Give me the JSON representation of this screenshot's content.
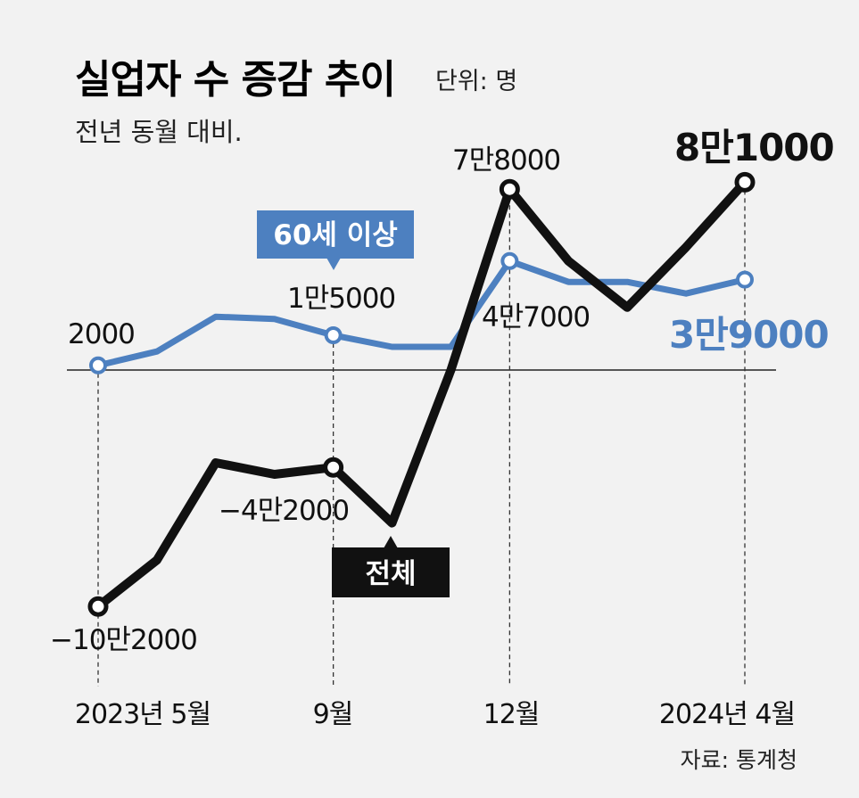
{
  "title": "실업자 수 증감 추이",
  "unit": "단위: 명",
  "subtitle": "전년 동월 대비.",
  "source": "자료: 통계청",
  "colors": {
    "total": "#111111",
    "senior": "#4d80c0",
    "background": "#f2f2f2",
    "tag_total": "#111111",
    "tag_senior": "#4d80c0"
  },
  "chart_data": {
    "type": "line",
    "title": "실업자 수 증감 추이",
    "ylabel": "단위: 명",
    "ylim": [
      -110000,
      90000
    ],
    "categories": [
      "2023-05",
      "2023-06",
      "2023-07",
      "2023-08",
      "2023-09",
      "2023-10",
      "2023-11",
      "2023-12",
      "2024-01",
      "2024-02",
      "2024-03",
      "2024-04"
    ],
    "x_tick_labels": [
      "2023년 5월",
      "9월",
      "12월",
      "2024년 4월"
    ],
    "x_tick_indices": [
      0,
      4,
      7,
      11
    ],
    "series": [
      {
        "name": "전체",
        "values": [
          -102000,
          -82000,
          -40000,
          -45000,
          -42000,
          -66000,
          0,
          78000,
          47000,
          27000,
          53000,
          81000
        ],
        "markers": [
          0,
          4,
          7,
          11
        ]
      },
      {
        "name": "60세 이상",
        "values": [
          2000,
          8000,
          23000,
          22000,
          15000,
          10000,
          10000,
          47000,
          38000,
          38000,
          33000,
          39000
        ],
        "markers": [
          0,
          4,
          7,
          11
        ]
      }
    ],
    "annotations": [
      {
        "series": 1,
        "index": 0,
        "text": "2000"
      },
      {
        "series": 1,
        "index": 4,
        "text": "1만5000"
      },
      {
        "series": 1,
        "index": 7,
        "text": "4만7000"
      },
      {
        "series": 1,
        "index": 11,
        "text": "3만9000"
      },
      {
        "series": 0,
        "index": 0,
        "text": "−10만2000"
      },
      {
        "series": 0,
        "index": 4,
        "text": "−4만2000"
      },
      {
        "series": 0,
        "index": 7,
        "text": "7만8000"
      },
      {
        "series": 0,
        "index": 11,
        "text": "8만1000"
      }
    ],
    "series_tags": [
      "전체",
      "60세 이상"
    ]
  }
}
